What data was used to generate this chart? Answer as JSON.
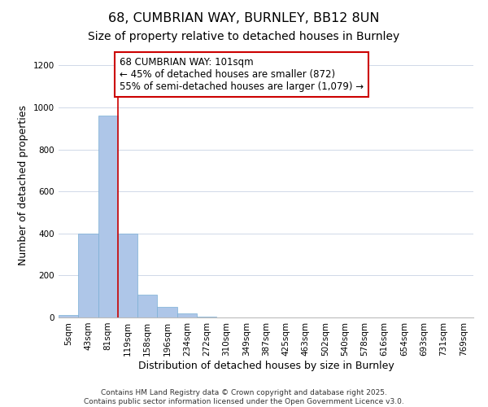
{
  "title": "68, CUMBRIAN WAY, BURNLEY, BB12 8UN",
  "subtitle": "Size of property relative to detached houses in Burnley",
  "xlabel": "Distribution of detached houses by size in Burnley",
  "ylabel": "Number of detached properties",
  "bar_labels": [
    "5sqm",
    "43sqm",
    "81sqm",
    "119sqm",
    "158sqm",
    "196sqm",
    "234sqm",
    "272sqm",
    "310sqm",
    "349sqm",
    "387sqm",
    "425sqm",
    "463sqm",
    "502sqm",
    "540sqm",
    "578sqm",
    "616sqm",
    "654sqm",
    "693sqm",
    "731sqm",
    "769sqm"
  ],
  "bar_values": [
    10,
    400,
    960,
    400,
    110,
    50,
    20,
    5,
    0,
    0,
    0,
    0,
    0,
    0,
    0,
    0,
    0,
    0,
    0,
    0,
    0
  ],
  "bar_color": "#aec6e8",
  "bar_edge_color": "#7aafd4",
  "property_line_x": 2.5,
  "property_line_color": "#cc0000",
  "annotation_line1": "68 CUMBRIAN WAY: 101sqm",
  "annotation_line2": "← 45% of detached houses are smaller (872)",
  "annotation_line3": "55% of semi-detached houses are larger (1,079) →",
  "annotation_box_color": "#ffffff",
  "annotation_box_edge_color": "#cc0000",
  "ylim": [
    0,
    1260
  ],
  "yticks": [
    0,
    200,
    400,
    600,
    800,
    1000,
    1200
  ],
  "bg_color": "#ffffff",
  "grid_color": "#d0d8e8",
  "footer_line1": "Contains HM Land Registry data © Crown copyright and database right 2025.",
  "footer_line2": "Contains public sector information licensed under the Open Government Licence v3.0.",
  "title_fontsize": 11.5,
  "subtitle_fontsize": 10,
  "axis_label_fontsize": 9,
  "tick_fontsize": 7.5,
  "annotation_fontsize": 8.5,
  "footer_fontsize": 6.5
}
